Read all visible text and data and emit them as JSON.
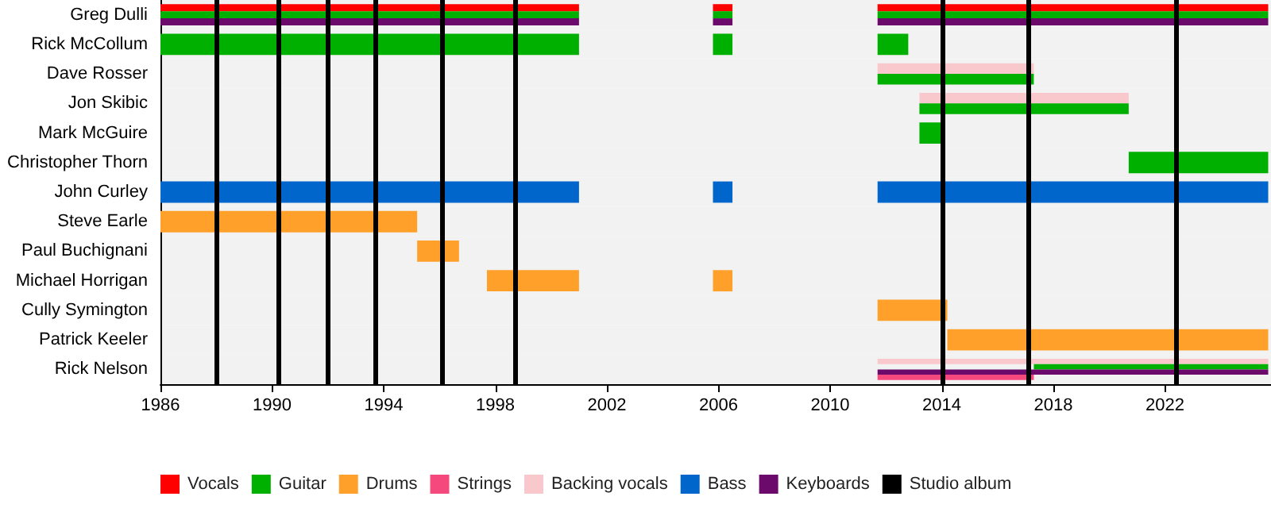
{
  "chart_data": {
    "type": "bar",
    "orientation": "horizontal",
    "categories": [
      "Greg Dulli",
      "Rick McCollum",
      "Dave Rosser",
      "Jon Skibic",
      "Mark McGuire",
      "Christopher Thorn",
      "John Curley",
      "Steve Earle",
      "Paul Buchignani",
      "Michael Horrigan",
      "Cully Symington",
      "Patrick Keeler",
      "Rick Nelson"
    ],
    "series": [
      {
        "name": "Vocals",
        "color": "#ff0000",
        "base": [
          1986,
          null,
          null,
          null,
          null,
          null,
          null,
          null,
          null,
          null,
          null,
          null,
          null
        ],
        "values": [
          15,
          null,
          null,
          null,
          null,
          null,
          null,
          null,
          null,
          null,
          null,
          null,
          null
        ]
      },
      {
        "color": "#ff0000",
        "base": [
          2005.8,
          null,
          null,
          null,
          null,
          null,
          null,
          null,
          null,
          null,
          null,
          null,
          null
        ],
        "values": [
          0.7,
          null,
          null,
          null,
          null,
          null,
          null,
          null,
          null,
          null,
          null,
          null,
          null
        ]
      },
      {
        "color": "#ff0000",
        "base": [
          2011.7,
          null,
          null,
          null,
          null,
          null,
          null,
          null,
          null,
          null,
          null,
          null,
          null
        ],
        "values": [
          14,
          null,
          null,
          null,
          null,
          null,
          null,
          null,
          null,
          null,
          null,
          null,
          null
        ]
      },
      {
        "name": "Backing vocals",
        "color": "#f8c8cc",
        "base": [
          null,
          null,
          2011.7,
          2013.2,
          null,
          null,
          null,
          null,
          null,
          null,
          null,
          null,
          2011.7
        ],
        "values": [
          null,
          null,
          5.6,
          7.5,
          null,
          null,
          null,
          null,
          null,
          null,
          null,
          null,
          14
        ]
      },
      {
        "name": "Guitar",
        "color": "#00b000",
        "base": [
          1986,
          1986,
          2011.7,
          2013.2,
          2013.2,
          2020.7,
          null,
          null,
          null,
          null,
          null,
          null,
          2017.3
        ],
        "values": [
          15,
          15,
          5.6,
          7.5,
          0.9,
          5,
          null,
          null,
          null,
          null,
          null,
          null,
          8.4
        ]
      },
      {
        "color": "#00b000",
        "base": [
          2005.8,
          2005.8,
          null,
          null,
          null,
          null,
          null,
          null,
          null,
          null,
          null,
          null,
          null
        ],
        "values": [
          0.7,
          0.7,
          null,
          null,
          null,
          null,
          null,
          null,
          null,
          null,
          null,
          null,
          null
        ]
      },
      {
        "color": "#00b000",
        "base": [
          2011.7,
          2011.7,
          null,
          null,
          null,
          null,
          null,
          null,
          null,
          null,
          null,
          null,
          null
        ],
        "values": [
          14,
          1.1,
          null,
          null,
          null,
          null,
          null,
          null,
          null,
          null,
          null,
          null,
          null
        ]
      },
      {
        "name": "Bass",
        "color": "#0066cc",
        "base": [
          null,
          null,
          null,
          null,
          null,
          null,
          1986,
          null,
          null,
          null,
          null,
          null,
          null
        ],
        "values": [
          null,
          null,
          null,
          null,
          null,
          null,
          15,
          null,
          null,
          null,
          null,
          null,
          null
        ]
      },
      {
        "color": "#0066cc",
        "base": [
          null,
          null,
          null,
          null,
          null,
          null,
          2005.8,
          null,
          null,
          null,
          null,
          null,
          null
        ],
        "values": [
          null,
          null,
          null,
          null,
          null,
          null,
          0.7,
          null,
          null,
          null,
          null,
          null,
          null
        ]
      },
      {
        "color": "#0066cc",
        "base": [
          null,
          null,
          null,
          null,
          null,
          null,
          2011.7,
          null,
          null,
          null,
          null,
          null,
          null
        ],
        "values": [
          null,
          null,
          null,
          null,
          null,
          null,
          14,
          null,
          null,
          null,
          null,
          null,
          null
        ]
      },
      {
        "name": "Drums",
        "color": "#ffa02a",
        "base": [
          null,
          null,
          null,
          null,
          null,
          null,
          null,
          1986,
          1995.2,
          1997.7,
          2011.7,
          2014.2,
          null
        ],
        "values": [
          null,
          null,
          null,
          null,
          null,
          null,
          null,
          9.2,
          1.5,
          3.3,
          2.5,
          11.5,
          null
        ]
      },
      {
        "color": "#ffa02a",
        "base": [
          null,
          null,
          null,
          null,
          null,
          null,
          null,
          null,
          null,
          2005.8,
          null,
          null,
          null
        ],
        "values": [
          null,
          null,
          null,
          null,
          null,
          null,
          null,
          null,
          null,
          0.7,
          null,
          null,
          null
        ]
      },
      {
        "name": "Keyboards",
        "color": "#6b0a6b",
        "base": [
          1986,
          null,
          null,
          null,
          null,
          null,
          null,
          null,
          null,
          null,
          null,
          null,
          2011.7
        ],
        "values": [
          15,
          null,
          null,
          null,
          null,
          null,
          null,
          null,
          null,
          null,
          null,
          null,
          14
        ]
      },
      {
        "color": "#6b0a6b",
        "base": [
          2005.8,
          null,
          null,
          null,
          null,
          null,
          null,
          null,
          null,
          null,
          null,
          null,
          null
        ],
        "values": [
          0.7,
          null,
          null,
          null,
          null,
          null,
          null,
          null,
          null,
          null,
          null,
          null,
          null
        ]
      },
      {
        "color": "#6b0a6b",
        "base": [
          2011.7,
          null,
          null,
          null,
          null,
          null,
          null,
          null,
          null,
          null,
          null,
          null,
          null
        ],
        "values": [
          14,
          null,
          null,
          null,
          null,
          null,
          null,
          null,
          null,
          null,
          null,
          null,
          null
        ]
      },
      {
        "name": "Strings",
        "color": "#f5487c",
        "base": [
          null,
          null,
          null,
          null,
          null,
          null,
          null,
          null,
          null,
          null,
          null,
          null,
          2011.7
        ],
        "values": [
          null,
          null,
          null,
          null,
          null,
          null,
          null,
          null,
          null,
          null,
          null,
          null,
          5.6
        ]
      }
    ],
    "xlim": [
      1986,
      2025.8
    ],
    "xticks": [
      1986,
      1990,
      1994,
      1998,
      2002,
      2006,
      2010,
      2014,
      2018,
      2022
    ],
    "ref_lines": [
      {
        "axis": "x",
        "value": 1988.0,
        "label": "Studio album",
        "color": "#000000"
      },
      {
        "axis": "x",
        "value": 1990.2,
        "color": "#000000"
      },
      {
        "axis": "x",
        "value": 1992.0,
        "color": "#000000"
      },
      {
        "axis": "x",
        "value": 1993.7,
        "color": "#000000"
      },
      {
        "axis": "x",
        "value": 1996.1,
        "color": "#000000"
      },
      {
        "axis": "x",
        "value": 1998.7,
        "color": "#000000"
      },
      {
        "axis": "x",
        "value": 2014.0,
        "color": "#000000"
      },
      {
        "axis": "x",
        "value": 2017.1,
        "color": "#000000"
      },
      {
        "axis": "x",
        "value": 2022.4,
        "color": "#000000"
      }
    ],
    "legend": "bottom"
  }
}
